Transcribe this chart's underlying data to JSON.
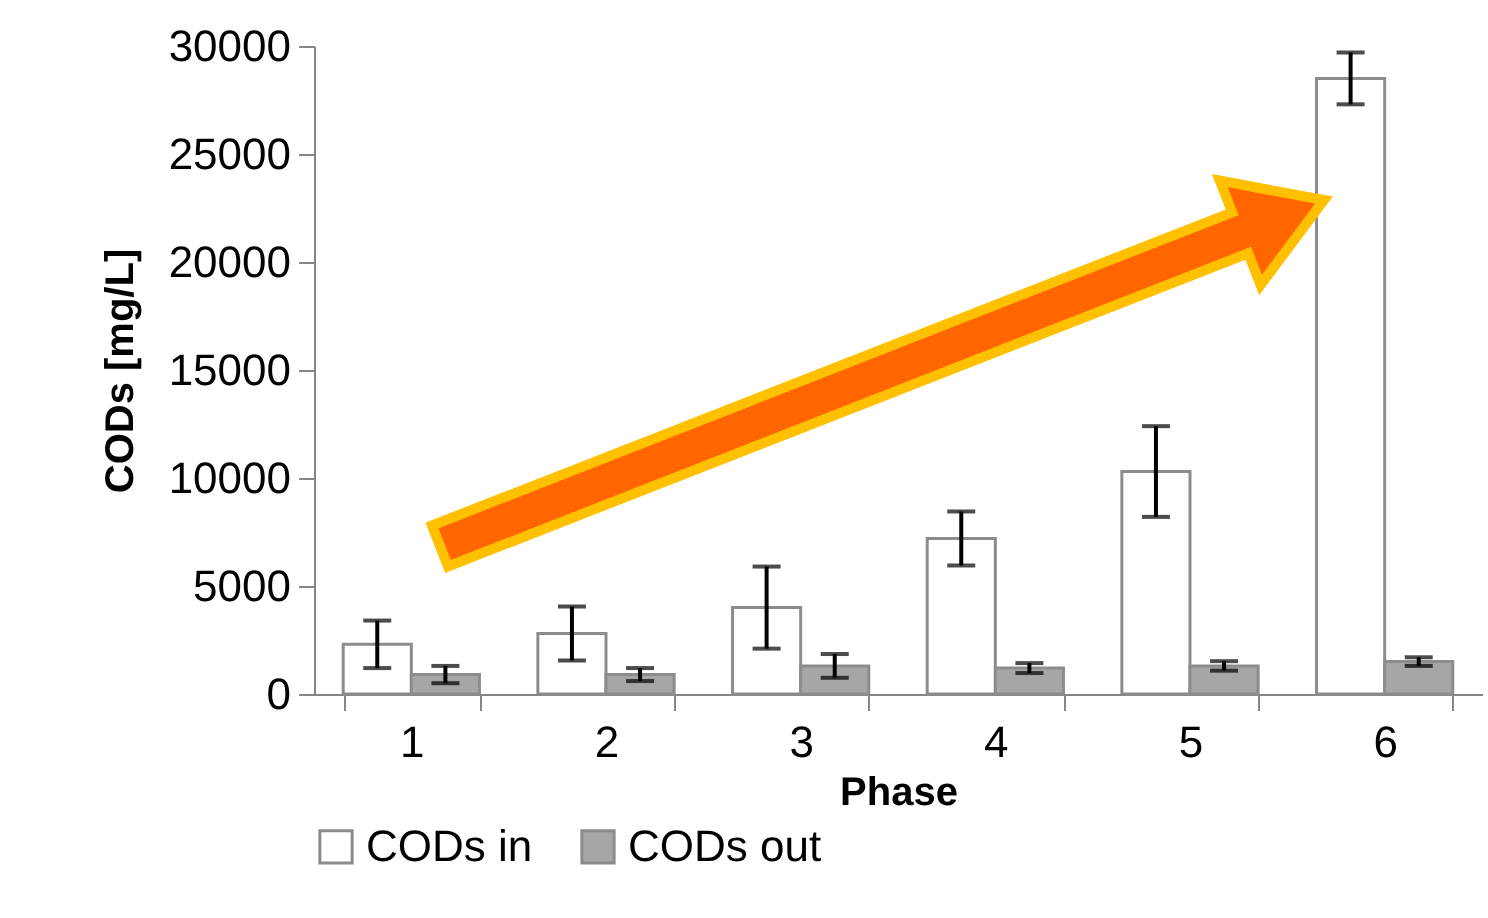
{
  "chart_data": {
    "type": "bar",
    "xlabel": "Phase",
    "ylabel": "CODs [mg/L]",
    "categories": [
      "1",
      "2",
      "3",
      "4",
      "5",
      "6"
    ],
    "series": [
      {
        "name": "CODs in",
        "color": "#ffffff",
        "values": [
          2300,
          2800,
          4000,
          7200,
          10300,
          28500
        ],
        "errors": [
          1100,
          1250,
          1900,
          1250,
          2100,
          1200
        ]
      },
      {
        "name": "CODs out",
        "color": "#a6a6a6",
        "values": [
          900,
          900,
          1300,
          1200,
          1300,
          1500
        ],
        "errors": [
          400,
          300,
          550,
          230,
          220,
          200
        ]
      }
    ],
    "ylim": [
      0,
      30000
    ],
    "yticks": [
      0,
      5000,
      10000,
      15000,
      20000,
      25000,
      30000
    ],
    "grid": false,
    "legend": "bottom"
  }
}
